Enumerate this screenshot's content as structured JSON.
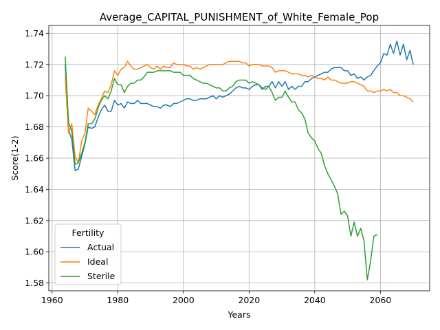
{
  "chart_data": {
    "type": "line",
    "title": "Average_CAPITAL_PUNISHMENT_of_White_Female_Pop",
    "xlabel": "Years",
    "ylabel": "Score(1-2)",
    "xlim": [
      1959,
      2075
    ],
    "ylim": [
      1.575,
      1.745
    ],
    "xticks": [
      1960,
      1980,
      2000,
      2020,
      2040,
      2060
    ],
    "yticks": [
      1.58,
      1.6,
      1.62,
      1.64,
      1.66,
      1.68,
      1.7,
      1.72,
      1.74
    ],
    "grid": true,
    "legend": {
      "title": "Fertility",
      "placement": "lower-left"
    },
    "series": [
      {
        "name": "Actual",
        "color": "#1f77b4",
        "x": [
          1964,
          1965,
          1966,
          1967,
          1968,
          1969,
          1970,
          1971,
          1972,
          1973,
          1974,
          1975,
          1976,
          1977,
          1978,
          1979,
          1980,
          1981,
          1982,
          1983,
          1984,
          1985,
          1986,
          1987,
          1988,
          1989,
          1990,
          1991,
          1992,
          1993,
          1994,
          1995,
          1996,
          1997,
          1998,
          1999,
          2000,
          2001,
          2002,
          2003,
          2004,
          2005,
          2006,
          2007,
          2008,
          2009,
          2010,
          2011,
          2012,
          2013,
          2014,
          2015,
          2016,
          2017,
          2018,
          2019,
          2020,
          2021,
          2022,
          2023,
          2024,
          2025,
          2026,
          2027,
          2028,
          2029,
          2030,
          2031,
          2032,
          2033,
          2034,
          2035,
          2036,
          2037,
          2038,
          2039,
          2040,
          2041,
          2042,
          2043,
          2044,
          2045,
          2046,
          2047,
          2048,
          2049,
          2050,
          2051,
          2052,
          2053,
          2054,
          2055,
          2056,
          2057,
          2058,
          2059,
          2060,
          2061,
          2062,
          2063,
          2064,
          2065,
          2066,
          2067,
          2068,
          2069,
          2070
        ],
        "values": [
          1.72,
          1.678,
          1.672,
          1.652,
          1.653,
          1.661,
          1.669,
          1.68,
          1.679,
          1.68,
          1.686,
          1.691,
          1.694,
          1.69,
          1.69,
          1.697,
          1.694,
          1.695,
          1.692,
          1.696,
          1.695,
          1.695,
          1.697,
          1.695,
          1.695,
          1.695,
          1.694,
          1.693,
          1.693,
          1.692,
          1.694,
          1.694,
          1.693,
          1.695,
          1.695,
          1.696,
          1.697,
          1.698,
          1.698,
          1.697,
          1.697,
          1.698,
          1.698,
          1.698,
          1.699,
          1.7,
          1.698,
          1.7,
          1.699,
          1.7,
          1.701,
          1.703,
          1.705,
          1.706,
          1.705,
          1.705,
          1.704,
          1.706,
          1.707,
          1.707,
          1.704,
          1.706,
          1.706,
          1.709,
          1.705,
          1.709,
          1.706,
          1.709,
          1.704,
          1.706,
          1.704,
          1.706,
          1.706,
          1.709,
          1.709,
          1.711,
          1.712,
          1.713,
          1.714,
          1.715,
          1.715,
          1.717,
          1.718,
          1.718,
          1.718,
          1.716,
          1.716,
          1.713,
          1.714,
          1.711,
          1.712,
          1.71,
          1.712,
          1.713,
          1.716,
          1.719,
          1.721,
          1.727,
          1.726,
          1.733,
          1.727,
          1.735,
          1.726,
          1.733,
          1.723,
          1.729,
          1.72
        ]
      },
      {
        "name": "Ideal",
        "color": "#ff7f0e",
        "x": [
          1964,
          1965,
          1966,
          1967,
          1968,
          1969,
          1970,
          1971,
          1972,
          1973,
          1974,
          1975,
          1976,
          1977,
          1978,
          1979,
          1980,
          1981,
          1982,
          1983,
          1984,
          1985,
          1986,
          1987,
          1988,
          1989,
          1990,
          1991,
          1992,
          1993,
          1994,
          1995,
          1996,
          1997,
          1998,
          1999,
          2000,
          2001,
          2002,
          2003,
          2004,
          2005,
          2006,
          2007,
          2008,
          2009,
          2010,
          2011,
          2012,
          2013,
          2014,
          2015,
          2016,
          2017,
          2018,
          2019,
          2020,
          2021,
          2022,
          2023,
          2024,
          2025,
          2026,
          2027,
          2028,
          2029,
          2030,
          2031,
          2032,
          2033,
          2034,
          2035,
          2036,
          2037,
          2038,
          2039,
          2040,
          2041,
          2042,
          2043,
          2044,
          2045,
          2046,
          2047,
          2048,
          2049,
          2050,
          2051,
          2052,
          2053,
          2054,
          2055,
          2056,
          2057,
          2058,
          2059,
          2060,
          2061,
          2062,
          2063,
          2064,
          2065,
          2066,
          2067,
          2068,
          2069,
          2070
        ],
        "values": [
          1.712,
          1.676,
          1.682,
          1.661,
          1.657,
          1.671,
          1.676,
          1.692,
          1.69,
          1.688,
          1.694,
          1.698,
          1.703,
          1.702,
          1.707,
          1.716,
          1.713,
          1.717,
          1.718,
          1.722,
          1.719,
          1.717,
          1.717,
          1.718,
          1.719,
          1.72,
          1.718,
          1.717,
          1.719,
          1.717,
          1.719,
          1.718,
          1.718,
          1.721,
          1.72,
          1.72,
          1.72,
          1.719,
          1.719,
          1.717,
          1.718,
          1.717,
          1.718,
          1.719,
          1.72,
          1.72,
          1.72,
          1.72,
          1.72,
          1.721,
          1.722,
          1.722,
          1.722,
          1.722,
          1.721,
          1.721,
          1.719,
          1.72,
          1.72,
          1.72,
          1.719,
          1.719,
          1.719,
          1.718,
          1.715,
          1.716,
          1.716,
          1.716,
          1.715,
          1.714,
          1.714,
          1.714,
          1.713,
          1.713,
          1.712,
          1.713,
          1.712,
          1.711,
          1.711,
          1.71,
          1.712,
          1.71,
          1.71,
          1.709,
          1.708,
          1.708,
          1.708,
          1.709,
          1.709,
          1.708,
          1.707,
          1.706,
          1.703,
          1.703,
          1.702,
          1.703,
          1.703,
          1.704,
          1.703,
          1.704,
          1.702,
          1.702,
          1.7,
          1.7,
          1.699,
          1.698,
          1.696
        ]
      },
      {
        "name": "Sterile",
        "color": "#2ca02c",
        "x": [
          1964,
          1965,
          1966,
          1967,
          1968,
          1969,
          1970,
          1971,
          1972,
          1973,
          1974,
          1975,
          1976,
          1977,
          1978,
          1979,
          1980,
          1981,
          1982,
          1983,
          1984,
          1985,
          1986,
          1987,
          1988,
          1989,
          1990,
          1991,
          1992,
          1993,
          1994,
          1995,
          1996,
          1997,
          1998,
          1999,
          2000,
          2001,
          2002,
          2003,
          2004,
          2005,
          2006,
          2007,
          2008,
          2009,
          2010,
          2011,
          2012,
          2013,
          2014,
          2015,
          2016,
          2017,
          2018,
          2019,
          2020,
          2021,
          2022,
          2023,
          2024,
          2025,
          2026,
          2027,
          2028,
          2029,
          2030,
          2031,
          2032,
          2033,
          2034,
          2035,
          2036,
          2037,
          2038,
          2039,
          2040,
          2041,
          2042,
          2043,
          2044,
          2045,
          2046,
          2047,
          2048,
          2049,
          2050,
          2051,
          2052,
          2053,
          2054,
          2055,
          2056,
          2057,
          2058,
          2059
        ],
        "values": [
          1.725,
          1.683,
          1.677,
          1.656,
          1.657,
          1.663,
          1.67,
          1.682,
          1.682,
          1.685,
          1.692,
          1.697,
          1.7,
          1.698,
          1.703,
          1.711,
          1.707,
          1.707,
          1.702,
          1.706,
          1.708,
          1.708,
          1.71,
          1.71,
          1.712,
          1.715,
          1.715,
          1.715,
          1.716,
          1.716,
          1.716,
          1.716,
          1.716,
          1.715,
          1.715,
          1.715,
          1.713,
          1.713,
          1.713,
          1.711,
          1.71,
          1.709,
          1.708,
          1.708,
          1.707,
          1.706,
          1.705,
          1.705,
          1.703,
          1.703,
          1.705,
          1.706,
          1.709,
          1.71,
          1.71,
          1.71,
          1.708,
          1.709,
          1.708,
          1.707,
          1.705,
          1.704,
          1.706,
          1.702,
          1.697,
          1.699,
          1.699,
          1.703,
          1.699,
          1.696,
          1.696,
          1.691,
          1.689,
          1.685,
          1.676,
          1.673,
          1.671,
          1.666,
          1.663,
          1.655,
          1.65,
          1.646,
          1.642,
          1.637,
          1.624,
          1.626,
          1.623,
          1.61,
          1.619,
          1.61,
          1.615,
          1.607,
          1.582,
          1.594,
          1.61,
          1.611
        ]
      }
    ]
  }
}
